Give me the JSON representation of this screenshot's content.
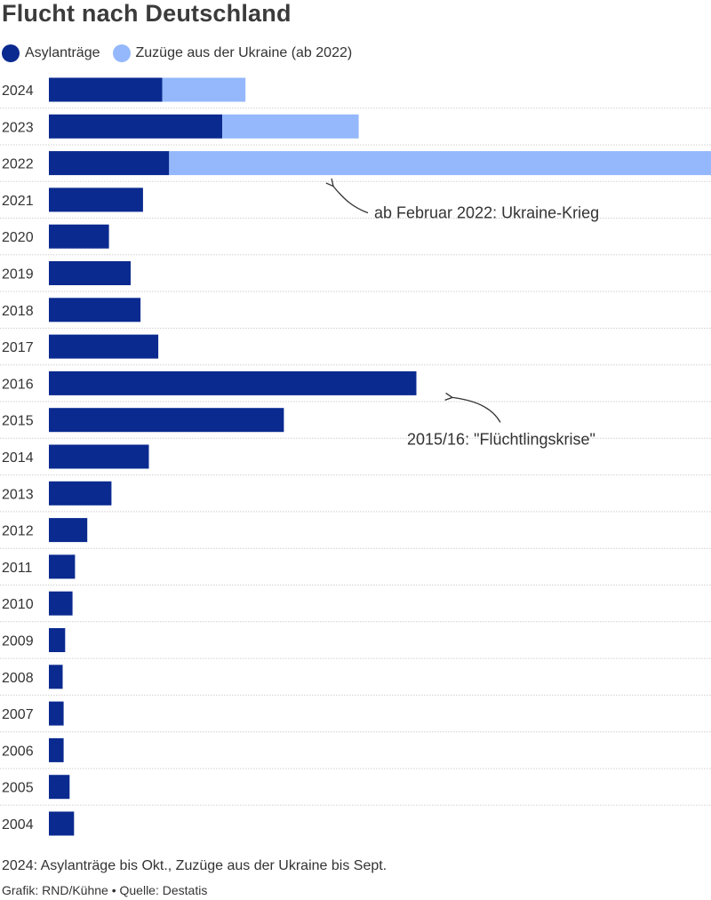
{
  "title": "Flucht nach Deutschland",
  "colors": {
    "asyl": "#0a2a8f",
    "ukraine": "#94b8fb",
    "gridline": "#d0d0d0"
  },
  "note": "2024: Asylanträge bis Okt., Zuzüge aus der Ukraine bis Sept.",
  "credit": "Grafik: RND/Kühne • Quelle: Destatis",
  "chart_data": {
    "type": "bar",
    "orientation": "horizontal",
    "stacked": true,
    "title": "Flucht nach Deutschland",
    "xlabel": "",
    "ylabel": "",
    "grid": false,
    "legend_position": "top-left",
    "categories": [
      "2024",
      "2023",
      "2022",
      "2021",
      "2020",
      "2019",
      "2018",
      "2017",
      "2016",
      "2015",
      "2014",
      "2013",
      "2012",
      "2011",
      "2010",
      "2009",
      "2008",
      "2007",
      "2006",
      "2005",
      "2004"
    ],
    "series": [
      {
        "name": "Asylanträge",
        "color": "#0a2a8f",
        "values": [
          230000,
          352000,
          244000,
          191000,
          122000,
          166000,
          186000,
          222000,
          746000,
          477000,
          203000,
          127000,
          78000,
          53000,
          48000,
          33000,
          28000,
          30000,
          30000,
          42000,
          51000
        ]
      },
      {
        "name": "Zuzüge aus der Ukraine (ab 2022)",
        "color": "#94b8fb",
        "values": [
          169000,
          277000,
          1100000,
          null,
          null,
          null,
          null,
          null,
          null,
          null,
          null,
          null,
          null,
          null,
          null,
          null,
          null,
          null,
          null,
          null,
          null
        ]
      }
    ],
    "xlim": [
      0,
      1344000
    ],
    "annotations": [
      {
        "category": "2022",
        "text": "ab Februar 2022: Ukraine-Krieg"
      },
      {
        "category": "2016",
        "text": "2015/16: \"Flüchtlingskrise\""
      }
    ]
  }
}
